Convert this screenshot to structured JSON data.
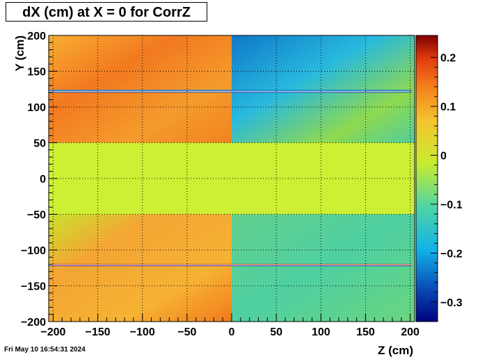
{
  "chart_data": {
    "type": "heatmap",
    "title": "dX (cm) at X = 0 for CorrZ",
    "xlabel": "Z (cm)",
    "ylabel": "Y (cm)",
    "xlim": [
      -205,
      205
    ],
    "ylim": [
      -200,
      200
    ],
    "zlim": [
      -0.34,
      0.245
    ],
    "x_ticks": [
      -200,
      -150,
      -100,
      -50,
      0,
      50,
      100,
      150,
      200
    ],
    "y_ticks": [
      -200,
      -150,
      -100,
      -50,
      0,
      50,
      100,
      150,
      200
    ],
    "z_ticks": [
      0.2,
      0.1,
      0,
      -0.1,
      -0.2,
      -0.3
    ],
    "x_tick_labels": [
      "−200",
      "−150",
      "−100",
      "−50",
      "0",
      "50",
      "100",
      "150",
      "200"
    ],
    "y_tick_labels": [
      "−200",
      "−150",
      "−100",
      "−50",
      "0",
      "50",
      "100",
      "150",
      "200"
    ],
    "z_tick_labels": [
      "0.2",
      "0.1",
      "0",
      "−0.1",
      "−0.2",
      "−0.3"
    ],
    "grid": true,
    "colorbar": "right",
    "regions": [
      {
        "z": [
          -205,
          0
        ],
        "y": [
          50,
          200
        ],
        "value": 0.1
      },
      {
        "z": [
          0,
          205
        ],
        "y": [
          50,
          200
        ],
        "value": -0.12
      },
      {
        "z": [
          -205,
          205
        ],
        "y": [
          -50,
          50
        ],
        "value": 0.02
      },
      {
        "z": [
          -205,
          0
        ],
        "y": [
          -200,
          -50
        ],
        "value": 0.08
      },
      {
        "z": [
          0,
          205
        ],
        "y": [
          -200,
          -50
        ],
        "value": -0.05
      }
    ],
    "lines": [
      {
        "y": 122,
        "value": -0.2
      },
      {
        "y": -121,
        "value": 0.15
      }
    ]
  },
  "footer": {
    "timestamp": "Fri May 10 16:54:31 2024"
  }
}
